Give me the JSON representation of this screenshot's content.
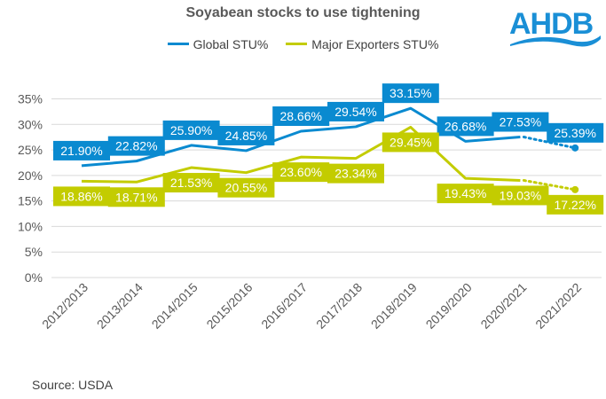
{
  "chart_data": {
    "type": "line",
    "title": "Soyabean stocks to use tightening",
    "categories": [
      "2012/2013",
      "2013/2014",
      "2014/2015",
      "2015/2016",
      "2016/2017",
      "2017/2018",
      "2018/2019",
      "2019/2020",
      "2020/2021",
      "2021/2022"
    ],
    "series": [
      {
        "name": "Global STU%",
        "color": "#0a8ad0",
        "values": [
          21.9,
          22.82,
          25.9,
          24.85,
          28.66,
          29.54,
          33.15,
          26.68,
          27.53,
          25.39
        ],
        "labels": [
          "21.90%",
          "22.82%",
          "25.90%",
          "24.85%",
          "28.66%",
          "29.54%",
          "33.15%",
          "26.68%",
          "27.53%",
          "25.39%"
        ],
        "forecast_from_index": 8
      },
      {
        "name": "Major Exporters STU%",
        "color": "#c3cc00",
        "values": [
          18.86,
          18.71,
          21.53,
          20.55,
          23.6,
          23.34,
          29.45,
          19.43,
          19.03,
          17.22
        ],
        "labels": [
          "18.86%",
          "18.71%",
          "21.53%",
          "20.55%",
          "23.60%",
          "23.34%",
          "29.45%",
          "19.43%",
          "19.03%",
          "17.22%"
        ],
        "forecast_from_index": 8
      }
    ],
    "yticks": [
      "0%",
      "5%",
      "10%",
      "15%",
      "20%",
      "25%",
      "30%",
      "35%"
    ],
    "ylim": [
      0,
      35
    ],
    "xlabel": "",
    "ylabel": "",
    "grid": true,
    "legend": "top-center"
  },
  "logo": "AHDB",
  "source": "Source: USDA"
}
